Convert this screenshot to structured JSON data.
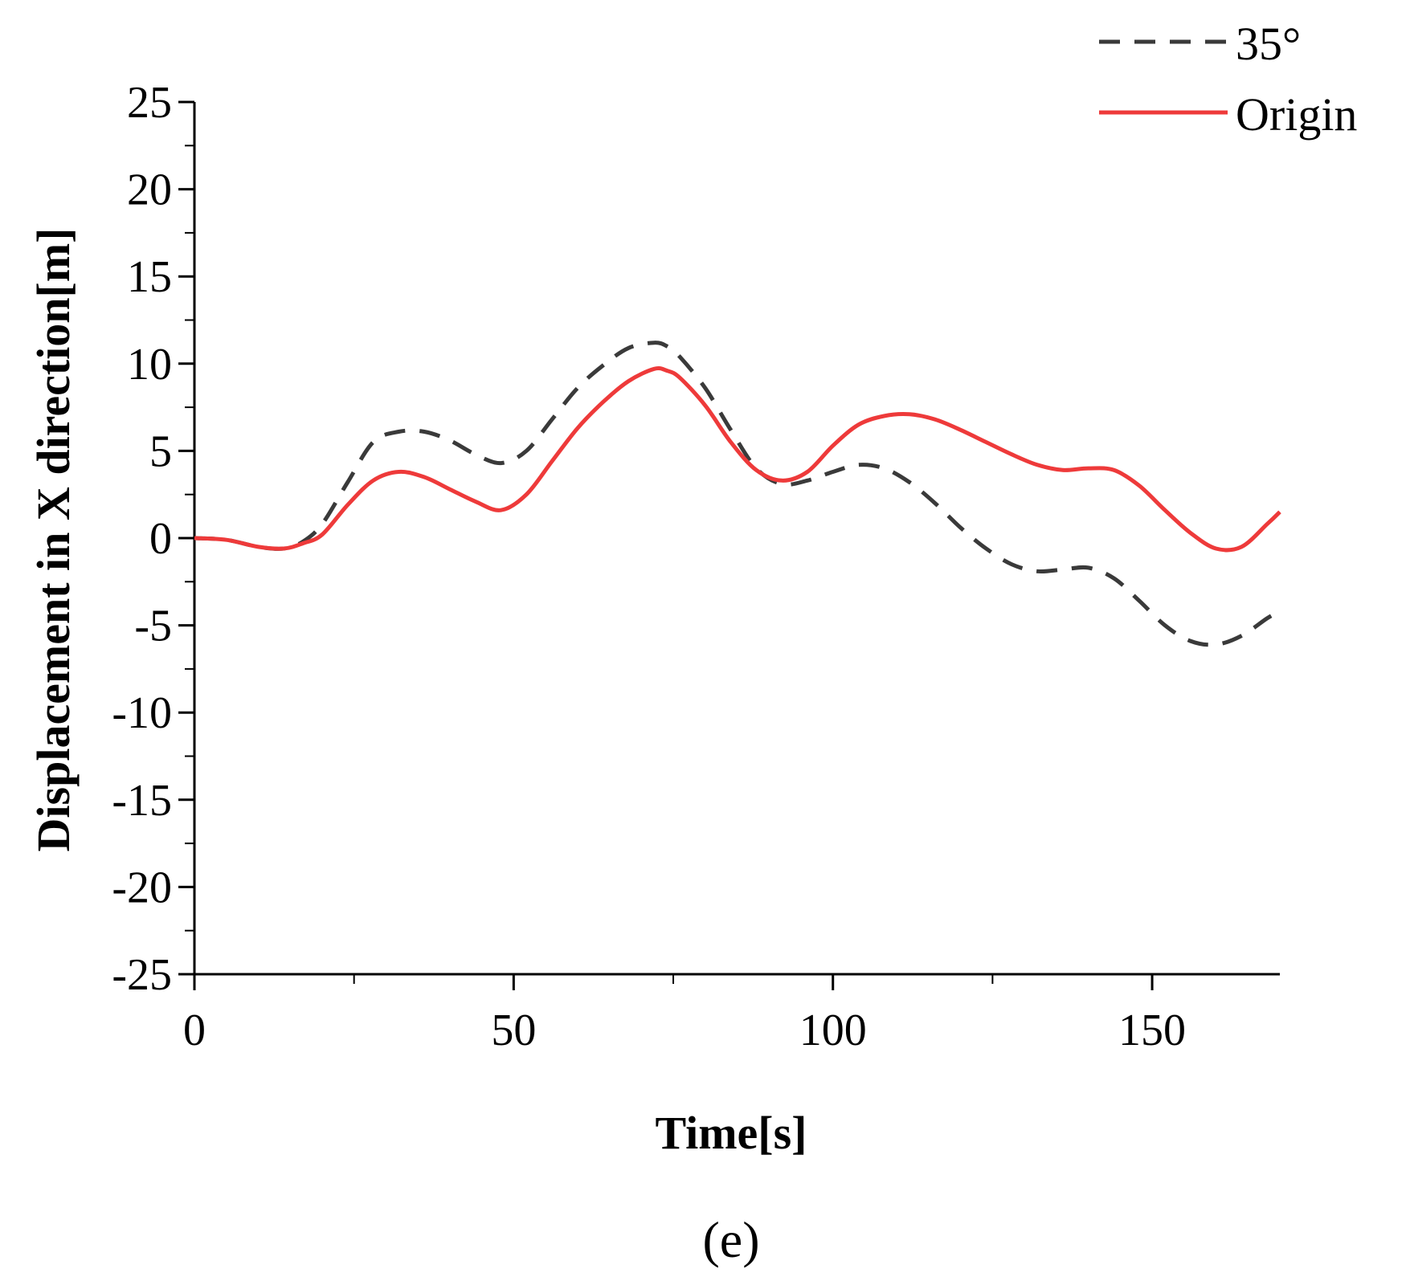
{
  "chart_data": {
    "type": "line",
    "title": "",
    "xlabel": "Time[s]",
    "ylabel": "Displacement in X direction[m]",
    "xlim": [
      0,
      170
    ],
    "ylim": [
      -25,
      25
    ],
    "xticks": [
      0,
      50,
      100,
      150
    ],
    "yticks": [
      -25,
      -20,
      -15,
      -10,
      -5,
      0,
      5,
      10,
      15,
      20,
      25
    ],
    "legend_position": "top-right",
    "panel_label": "(e)",
    "series": [
      {
        "name": "35°",
        "style": "dashed",
        "color": "#3a3a3a",
        "x": [
          0,
          5,
          10,
          14,
          17,
          20,
          24,
          28,
          32,
          36,
          40,
          44,
          48,
          52,
          56,
          60,
          64,
          68,
          72,
          74,
          76,
          80,
          84,
          88,
          92,
          96,
          100,
          104,
          108,
          112,
          116,
          120,
          124,
          128,
          132,
          136,
          140,
          144,
          148,
          152,
          156,
          160,
          164,
          168,
          170
        ],
        "y": [
          0,
          -0.1,
          -0.5,
          -0.6,
          -0.2,
          0.8,
          3.2,
          5.5,
          6.1,
          6.1,
          5.6,
          4.8,
          4.3,
          5.0,
          6.8,
          8.6,
          9.9,
          10.9,
          11.2,
          11.0,
          10.4,
          8.6,
          6.2,
          4.0,
          3.1,
          3.3,
          3.8,
          4.2,
          4.0,
          3.2,
          2.0,
          0.6,
          -0.6,
          -1.5,
          -1.9,
          -1.8,
          -1.7,
          -2.3,
          -3.6,
          -5.0,
          -5.9,
          -6.1,
          -5.6,
          -4.6,
          -4.2
        ]
      },
      {
        "name": "Origin",
        "style": "solid",
        "color": "#ee3a3a",
        "x": [
          0,
          5,
          10,
          14,
          17,
          20,
          24,
          28,
          32,
          36,
          40,
          44,
          48,
          52,
          56,
          60,
          64,
          68,
          72,
          74,
          76,
          80,
          84,
          88,
          92,
          96,
          100,
          104,
          108,
          112,
          116,
          120,
          124,
          128,
          132,
          136,
          140,
          144,
          148,
          152,
          156,
          160,
          164,
          168,
          170
        ],
        "y": [
          0,
          -0.1,
          -0.5,
          -0.6,
          -0.3,
          0.2,
          1.9,
          3.3,
          3.8,
          3.5,
          2.8,
          2.1,
          1.6,
          2.5,
          4.4,
          6.3,
          7.8,
          9.0,
          9.7,
          9.6,
          9.2,
          7.6,
          5.5,
          3.9,
          3.3,
          3.8,
          5.3,
          6.5,
          7.0,
          7.1,
          6.8,
          6.2,
          5.5,
          4.8,
          4.2,
          3.9,
          4.0,
          3.9,
          3.0,
          1.6,
          0.3,
          -0.6,
          -0.5,
          0.8,
          1.5
        ]
      }
    ]
  }
}
